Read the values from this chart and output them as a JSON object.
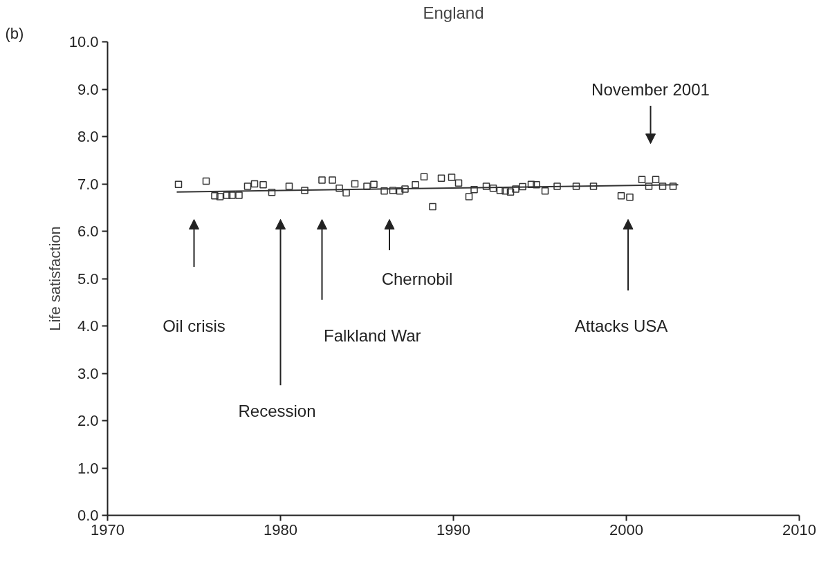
{
  "chart_data": {
    "type": "scatter",
    "title": "England",
    "ylabel": "Life satisfaction",
    "xlim": [
      1970,
      2010
    ],
    "xticks": [
      1970,
      1980,
      1990,
      2000,
      2010
    ],
    "ylim": [
      0,
      10
    ],
    "yticks": [
      {
        "value": 0,
        "label": "0.0"
      },
      {
        "value": 1,
        "label": "1.0"
      },
      {
        "value": 2,
        "label": "2.0"
      },
      {
        "value": 3,
        "label": "3.0"
      },
      {
        "value": 4,
        "label": "4.0"
      },
      {
        "value": 5,
        "label": "5.0"
      },
      {
        "value": 6,
        "label": "6.0"
      },
      {
        "value": 7,
        "label": "7.0"
      },
      {
        "value": 8,
        "label": "8.0"
      },
      {
        "value": 9,
        "label": "9.0"
      },
      {
        "value": 10,
        "label": "10.0"
      }
    ],
    "grid": false,
    "series": [
      {
        "marker": "square",
        "color": "#333333",
        "x": [
          1974.1,
          1975.7,
          1976.2,
          1976.5,
          1976.9,
          1977.2,
          1977.6,
          1978.1,
          1978.5,
          1979.0,
          1979.5,
          1980.5,
          1981.4,
          1982.4,
          1983.0,
          1983.4,
          1983.8,
          1984.3,
          1985.0,
          1985.4,
          1986.0,
          1986.5,
          1986.9,
          1987.2,
          1987.8,
          1988.3,
          1988.8,
          1989.3,
          1989.9,
          1990.3,
          1990.9,
          1991.2,
          1991.9,
          1992.3,
          1992.7,
          1993.0,
          1993.3,
          1993.6,
          1994.0,
          1994.5,
          1994.8,
          1995.3,
          1996.0,
          1997.1,
          1998.1,
          1999.7,
          2000.2,
          2000.9,
          2001.3,
          2001.7,
          2002.1,
          2002.7
        ],
        "values": [
          6.99,
          7.06,
          6.75,
          6.73,
          6.76,
          6.76,
          6.76,
          6.95,
          7.0,
          6.98,
          6.82,
          6.95,
          6.86,
          7.08,
          7.08,
          6.91,
          6.81,
          7.0,
          6.95,
          6.99,
          6.85,
          6.86,
          6.85,
          6.89,
          6.98,
          7.15,
          6.52,
          7.12,
          7.14,
          7.02,
          6.73,
          6.88,
          6.95,
          6.91,
          6.86,
          6.85,
          6.83,
          6.89,
          6.94,
          6.99,
          6.98,
          6.85,
          6.95,
          6.95,
          6.95,
          6.75,
          6.72,
          7.09,
          6.95,
          7.09,
          6.95,
          6.95
        ]
      },
      {
        "type": "line",
        "color": "#333333",
        "x": [
          1974.0,
          2003.0
        ],
        "values": [
          6.83,
          6.98
        ]
      }
    ],
    "annotations": [
      "(b)",
      "Oil crisis",
      "Recession",
      "Falkland War",
      "Chernobil",
      "Attacks USA",
      "November 2001"
    ]
  }
}
